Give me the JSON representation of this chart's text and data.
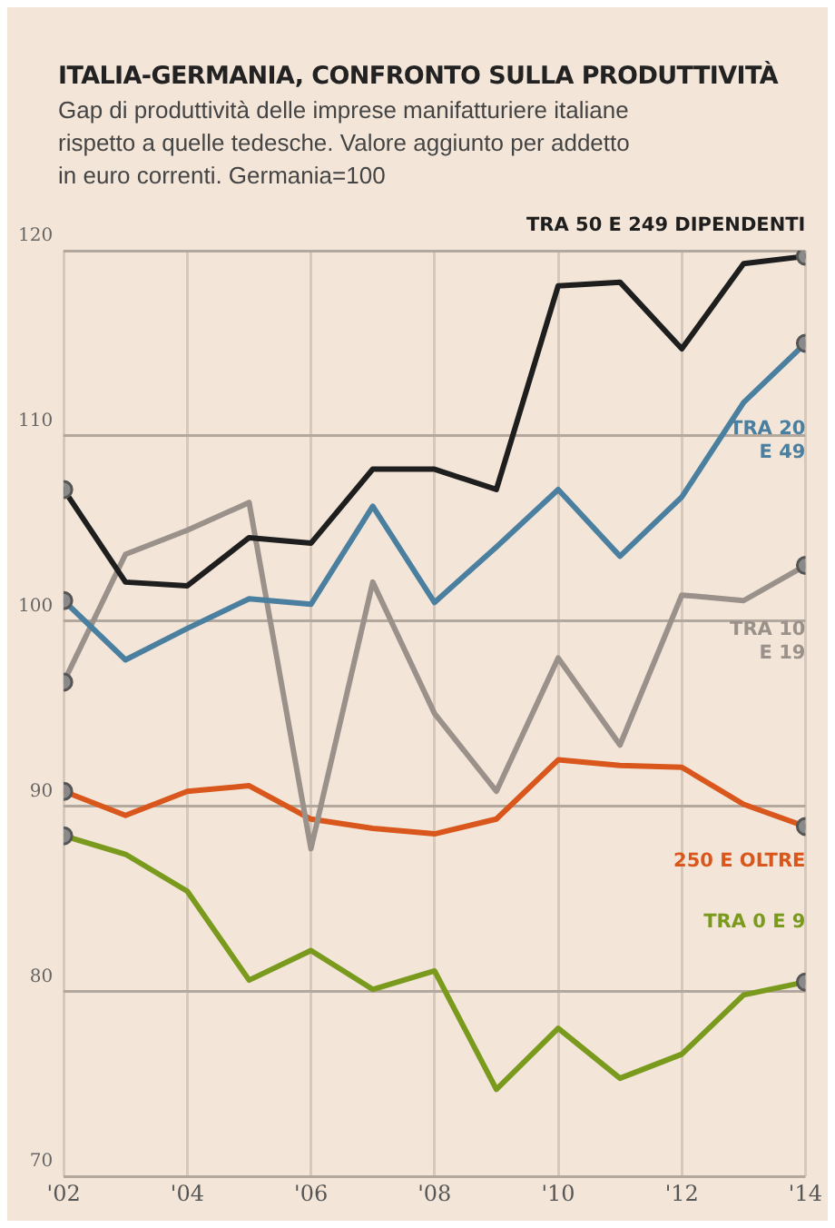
{
  "chart_data": {
    "type": "line",
    "title": "ITALIA-GERMANIA, CONFRONTO SULLA PRODUTTIVITÀ",
    "subtitle": "Gap di produttività delle imprese manifatturiere italiane rispetto a quelle tedesche. Valore aggiunto per addetto in euro correnti. Germania=100",
    "x": [
      2002,
      2003,
      2004,
      2005,
      2006,
      2007,
      2008,
      2009,
      2010,
      2011,
      2012,
      2013,
      2014
    ],
    "series": [
      {
        "name": "TRA 50 E 249 DIPENDENTI",
        "color": "#1e1e1e",
        "values": [
          107.1,
          102.1,
          101.9,
          104.5,
          104.2,
          108.2,
          108.2,
          107.1,
          118.1,
          118.3,
          114.7,
          119.3,
          119.7
        ]
      },
      {
        "name": "TRA 20 E 49",
        "color": "#4a7fa0",
        "values": [
          101.1,
          97.9,
          99.6,
          101.2,
          100.9,
          106.2,
          101,
          104,
          107.1,
          103.5,
          106.7,
          111.8,
          115
        ]
      },
      {
        "name": "TRA 10 E 19",
        "color": "#9a918a",
        "values": [
          96.7,
          103.6,
          104.9,
          106.4,
          87.7,
          102.1,
          95,
          90.8,
          98,
          93.3,
          101.4,
          101.1,
          103
        ]
      },
      {
        "name": "250 E OLTRE",
        "color": "#d9561c",
        "values": [
          90.8,
          89.5,
          90.8,
          91.1,
          89.3,
          88.8,
          88.5,
          89.3,
          92.5,
          92.2,
          92.1,
          90.1,
          88.9
        ]
      },
      {
        "name": "TRA 0 E 9",
        "color": "#7a9a1e",
        "values": [
          88.4,
          87.4,
          85.4,
          80.6,
          82.2,
          80.1,
          81.1,
          74.7,
          78,
          75.3,
          76.6,
          79.8,
          80.5
        ]
      }
    ],
    "xlim": [
      2002,
      2014
    ],
    "xticks": [
      {
        "value": 2002,
        "label": "'02"
      },
      {
        "value": 2004,
        "label": "'04"
      },
      {
        "value": 2006,
        "label": "'06"
      },
      {
        "value": 2008,
        "label": "'08"
      },
      {
        "value": 2010,
        "label": "'10"
      },
      {
        "value": 2012,
        "label": "'12"
      },
      {
        "value": 2014,
        "label": "'14"
      }
    ],
    "ylim": [
      70,
      120
    ],
    "yticks": [
      70,
      80,
      90,
      100,
      110,
      120
    ],
    "grid": true,
    "legend": false,
    "line_style": "solid"
  }
}
